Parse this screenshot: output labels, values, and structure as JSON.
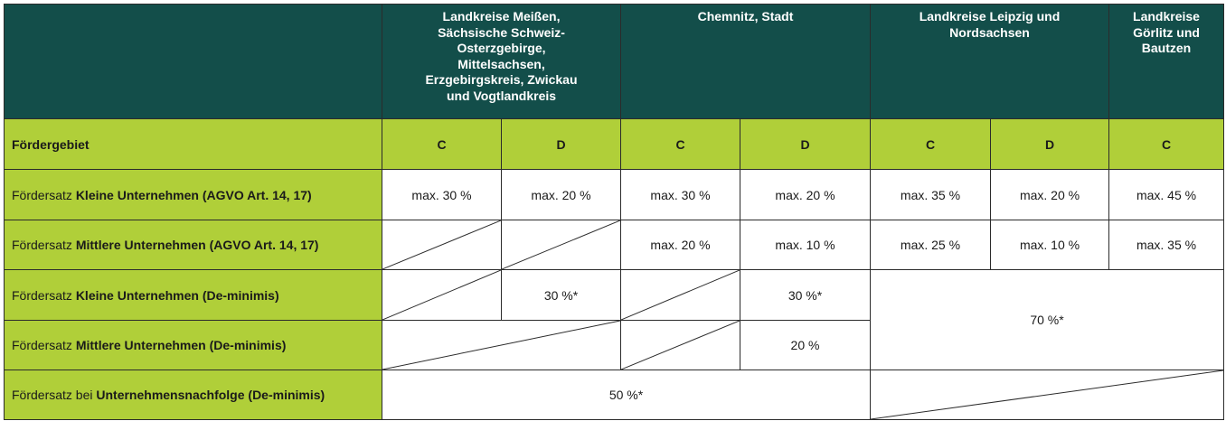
{
  "header": {
    "col1": "Landkreise Meißen, Sächsische Schweiz-Osterzgebirge, Mittelsachsen, Erzgebirgskreis, Zwickau und Vogtlandkreis",
    "col2": "Chemnitz, Stadt",
    "col3": "Landkreise Leipzig und Nordsachsen",
    "col4": "Landkreise Görlitz und Bautzen"
  },
  "foerdergebiet": {
    "label": "Fördergebiet",
    "areas": [
      "C",
      "D",
      "C",
      "D",
      "C",
      "D",
      "C"
    ]
  },
  "rows": [
    {
      "prefix": "Fördersatz ",
      "bold": "Kleine Unternehmen (AGVO Art. 14, 17)",
      "values": [
        "max. 30 %",
        "max. 20 %",
        "max. 30 %",
        "max. 20 %",
        "max. 35 %",
        "max. 20 %",
        "max. 45 %"
      ]
    },
    {
      "prefix": "Fördersatz ",
      "bold": "Mittlere Unternehmen (AGVO Art. 14, 17)",
      "values": [
        "",
        "",
        "max. 20 %",
        "max. 10 %",
        "max. 25 %",
        "max. 10 %",
        "max. 35 %"
      ]
    },
    {
      "prefix": "Fördersatz ",
      "bold": "Kleine Unternehmen (De-minimis)",
      "values": [
        "",
        "30 %*",
        "",
        "30 %*",
        "70 %*"
      ]
    },
    {
      "prefix": "Fördersatz ",
      "bold": "Mittlere Unternehmen (De-minimis)",
      "values": [
        "",
        "",
        "20 %"
      ]
    },
    {
      "prefix": "Fördersatz bei ",
      "bold": "Unternehmensnachfolge (De-minimis)",
      "values": [
        "50 %*",
        ""
      ]
    }
  ]
}
